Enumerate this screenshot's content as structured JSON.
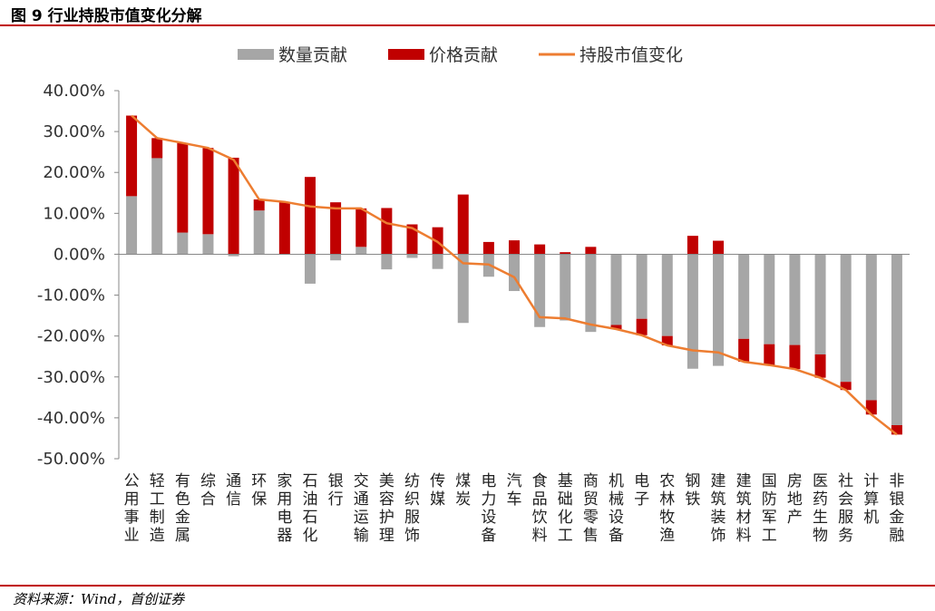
{
  "figure_title": "图 9 行业持股市值变化分解",
  "source_note": "资料来源：Wind，首创证券",
  "colors": {
    "quantity": "#a6a6a6",
    "price": "#c00000",
    "line": "#ed7d31",
    "rule": "#c00000"
  },
  "chart_data": {
    "type": "bar",
    "stacked": true,
    "title": "",
    "xlabel": "",
    "ylabel": "",
    "ylim": [
      -50,
      40
    ],
    "yticks": [
      40,
      30,
      20,
      10,
      0,
      -10,
      -20,
      -30,
      -40,
      -50
    ],
    "ytick_labels": [
      "40.00%",
      "30.00%",
      "20.00%",
      "10.00%",
      "0.00%",
      "-10.00%",
      "-20.00%",
      "-30.00%",
      "-40.00%",
      "-50.00%"
    ],
    "legend_position": "top",
    "categories": [
      "公用事业",
      "轻工制造",
      "有色金属",
      "综合",
      "通信",
      "环保",
      "家用电器",
      "石油石化",
      "银行",
      "交通运输",
      "美容护理",
      "纺织服饰",
      "传媒",
      "煤炭",
      "电力设备",
      "汽车",
      "食品饮料",
      "基础化工",
      "商贸零售",
      "机械设备",
      "电子",
      "农林牧渔",
      "钢铁",
      "建筑装饰",
      "建筑材料",
      "国防军工",
      "房地产",
      "医药生物",
      "社会服务",
      "计算机",
      "非银金融"
    ],
    "series": [
      {
        "name": "数量贡献",
        "type": "bar",
        "values": [
          14.2,
          23.5,
          5.3,
          4.9,
          -0.5,
          10.7,
          0,
          -7.2,
          -1.5,
          1.8,
          -3.7,
          -0.9,
          -3.6,
          -16.8,
          -5.5,
          -9.0,
          -17.8,
          -16.2,
          -19.0,
          -17.3,
          -15.8,
          -20.0,
          -28.0,
          -27.3,
          -20.7,
          -22.0,
          -22.2,
          -24.5,
          -31.2,
          -35.7,
          -41.8
        ]
      },
      {
        "name": "价格贡献",
        "type": "bar",
        "values": [
          19.7,
          4.9,
          21.9,
          21.1,
          23.6,
          2.7,
          12.8,
          18.9,
          12.7,
          9.4,
          11.3,
          7.3,
          6.6,
          14.6,
          3.0,
          3.4,
          2.4,
          0.5,
          1.8,
          -1.0,
          -4.0,
          -2.3,
          4.5,
          3.3,
          -5.6,
          -5.1,
          -5.9,
          -5.7,
          -2.0,
          -3.5,
          -2.3
        ]
      },
      {
        "name": "持股市值变化",
        "type": "line",
        "values": [
          33.9,
          28.4,
          27.2,
          26.0,
          23.1,
          13.4,
          12.8,
          11.7,
          11.2,
          11.2,
          7.6,
          6.4,
          3.0,
          -2.2,
          -2.5,
          -5.6,
          -15.4,
          -15.7,
          -17.2,
          -18.3,
          -19.8,
          -22.3,
          -23.5,
          -24.0,
          -26.3,
          -27.1,
          -28.1,
          -30.2,
          -33.2,
          -39.2,
          -44.1
        ]
      }
    ]
  }
}
